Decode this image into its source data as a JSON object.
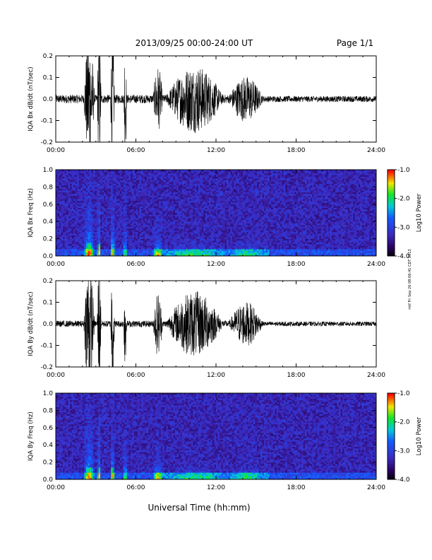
{
  "header": {
    "title": "2013/09/25  00:00-24:00 UT",
    "page": "Page 1/1"
  },
  "side_stamp": "mtf Fri Sep 26 08:06:41 CDT 2013",
  "xlabel": "Universal Time (hh:mm)",
  "colorbar": {
    "label": "Log10 Power",
    "ticks": [
      "-1.0",
      "-2.0",
      "-3.0",
      "-4.0"
    ]
  },
  "chart_data": [
    {
      "type": "line",
      "name": "bx-waveform",
      "ylabel": "IQA Bx dB/dt (nT/sec)",
      "xlim": [
        0,
        24
      ],
      "ylim": [
        -0.2,
        0.2
      ],
      "xticks": [
        "00:00",
        "06:00",
        "12:00",
        "18:00",
        "24:00"
      ],
      "yticks": [
        "0.2",
        "0.1",
        "0.0",
        "-0.1",
        "-0.2"
      ],
      "activity_windows_hr": [
        [
          2.1,
          2.9
        ],
        [
          3.1,
          3.4
        ],
        [
          4.1,
          4.4
        ],
        [
          5.1,
          5.3
        ],
        [
          7.3,
          8.0
        ],
        [
          8.3,
          12.5
        ],
        [
          13.0,
          15.5
        ]
      ],
      "noise_amplitude": 0.02
    },
    {
      "type": "heatmap",
      "name": "bx-spectrogram",
      "ylabel": "IQA Bx Freq (Hz)",
      "xlim": [
        0,
        24
      ],
      "ylim": [
        0.0,
        1.0
      ],
      "xticks": [
        "00:00",
        "06:00",
        "12:00",
        "18:00",
        "24:00"
      ],
      "yticks": [
        "1.0",
        "0.8",
        "0.6",
        "0.4",
        "0.2",
        "0.0"
      ],
      "zlim": [
        -4.0,
        -1.0
      ],
      "zlabel": "Log10 Power"
    },
    {
      "type": "line",
      "name": "by-waveform",
      "ylabel": "IQA By dB/dt (nT/sec)",
      "xlim": [
        0,
        24
      ],
      "ylim": [
        -0.2,
        0.2
      ],
      "xticks": [
        "00:00",
        "06:00",
        "12:00",
        "18:00",
        "24:00"
      ],
      "yticks": [
        "0.2",
        "0.1",
        "0.0",
        "-0.1",
        "-0.2"
      ],
      "activity_windows_hr": [
        [
          2.1,
          2.9
        ],
        [
          3.1,
          3.4
        ],
        [
          4.1,
          4.4
        ],
        [
          5.1,
          5.3
        ],
        [
          7.3,
          8.0
        ],
        [
          8.3,
          12.5
        ],
        [
          13.0,
          15.5
        ]
      ],
      "noise_amplitude": 0.015
    },
    {
      "type": "heatmap",
      "name": "by-spectrogram",
      "ylabel": "IQA By Freq (Hz)",
      "xlim": [
        0,
        24
      ],
      "ylim": [
        0.0,
        1.0
      ],
      "xticks": [
        "00:00",
        "06:00",
        "12:00",
        "18:00",
        "24:00"
      ],
      "yticks": [
        "1.0",
        "0.8",
        "0.6",
        "0.4",
        "0.2",
        "0.0"
      ],
      "zlim": [
        -4.0,
        -1.0
      ],
      "zlabel": "Log10 Power"
    }
  ]
}
